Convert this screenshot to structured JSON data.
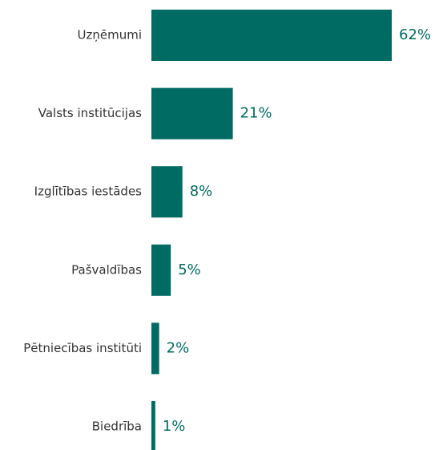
{
  "chart_data": {
    "type": "bar",
    "orientation": "horizontal",
    "categories": [
      "Uzņēmumi",
      "Valsts institūcijas",
      "Izglītības iestādes",
      "Pašvaldības",
      "Pētniecības institūti",
      "Biedrība"
    ],
    "values": [
      62,
      21,
      8,
      5,
      2,
      1
    ],
    "value_labels": [
      "62%",
      "21%",
      "8%",
      "5%",
      "2%",
      "1%"
    ],
    "color": "#006b63"
  }
}
